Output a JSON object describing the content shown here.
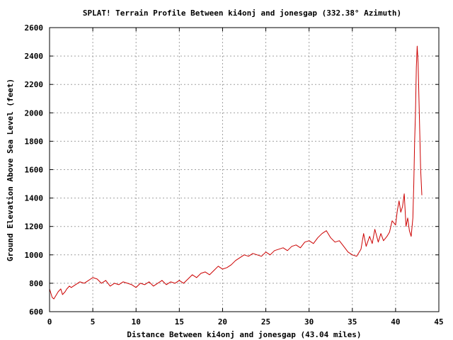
{
  "chart_data": {
    "type": "line",
    "title": "SPLAT! Terrain Profile Between ki4onj and jonesgap (332.38° Azimuth)",
    "xlabel": "Distance Between ki4onj and jonesgap (43.04 miles)",
    "ylabel": "Ground Elevation Above Sea Level (feet)",
    "xlim": [
      0,
      45
    ],
    "ylim": [
      600,
      2600
    ],
    "xticks": [
      "0",
      "5",
      "10",
      "15",
      "20",
      "25",
      "30",
      "35",
      "40",
      "45"
    ],
    "yticks": [
      "600",
      "800",
      "1000",
      "1200",
      "1400",
      "1600",
      "1800",
      "2000",
      "2200",
      "2400",
      "2600"
    ],
    "grid": true,
    "line_color": "#cc0000",
    "series": [
      {
        "x": [
          0,
          0.3,
          0.5,
          0.8,
          1.0,
          1.3,
          1.5,
          1.8,
          2.0,
          2.3,
          2.5,
          3.0,
          3.5,
          4.0,
          4.5,
          5.0,
          5.5,
          6.0,
          6.5,
          7.0,
          7.5,
          8.0,
          8.5,
          9.0,
          9.5,
          10.0,
          10.5,
          11.0,
          11.5,
          12.0,
          12.5,
          13.0,
          13.5,
          14.0,
          14.5,
          15.0,
          15.5,
          16.0,
          16.5,
          17.0,
          17.5,
          18.0,
          18.5,
          19.0,
          19.5,
          20.0,
          20.5,
          21.0,
          21.5,
          22.0,
          22.5,
          23.0,
          23.5,
          24.0,
          24.5,
          25.0,
          25.5,
          26.0,
          26.5,
          27.0,
          27.5,
          28.0,
          28.5,
          29.0,
          29.5,
          30.0,
          30.5,
          31.0,
          31.5,
          32.0,
          32.5,
          33.0,
          33.5,
          34.0,
          34.5,
          35.0,
          35.5,
          36.0,
          36.3,
          36.6,
          37.0,
          37.3,
          37.6,
          38.0,
          38.3,
          38.6,
          39.0,
          39.3,
          39.6,
          40.0,
          40.2,
          40.4,
          40.6,
          40.8,
          41.0,
          41.2,
          41.4,
          41.6,
          41.8,
          42.0,
          42.1,
          42.2,
          42.3,
          42.4,
          42.5,
          42.6,
          42.7,
          42.8,
          42.9,
          43.04
        ],
        "y": [
          760,
          700,
          690,
          720,
          740,
          760,
          720,
          740,
          760,
          780,
          770,
          790,
          810,
          800,
          820,
          840,
          830,
          800,
          820,
          780,
          800,
          790,
          810,
          800,
          790,
          770,
          800,
          790,
          810,
          780,
          800,
          820,
          790,
          810,
          800,
          820,
          800,
          830,
          860,
          840,
          870,
          880,
          860,
          890,
          920,
          900,
          910,
          930,
          960,
          980,
          1000,
          990,
          1010,
          1000,
          990,
          1020,
          1000,
          1030,
          1040,
          1050,
          1030,
          1060,
          1070,
          1050,
          1090,
          1100,
          1080,
          1120,
          1150,
          1170,
          1120,
          1090,
          1100,
          1060,
          1020,
          1000,
          990,
          1040,
          1150,
          1060,
          1130,
          1080,
          1180,
          1090,
          1150,
          1100,
          1130,
          1160,
          1240,
          1210,
          1310,
          1380,
          1300,
          1340,
          1430,
          1200,
          1260,
          1170,
          1130,
          1260,
          1500,
          1800,
          2000,
          2320,
          2470,
          2350,
          2100,
          1850,
          1600,
          1420
        ]
      }
    ]
  }
}
